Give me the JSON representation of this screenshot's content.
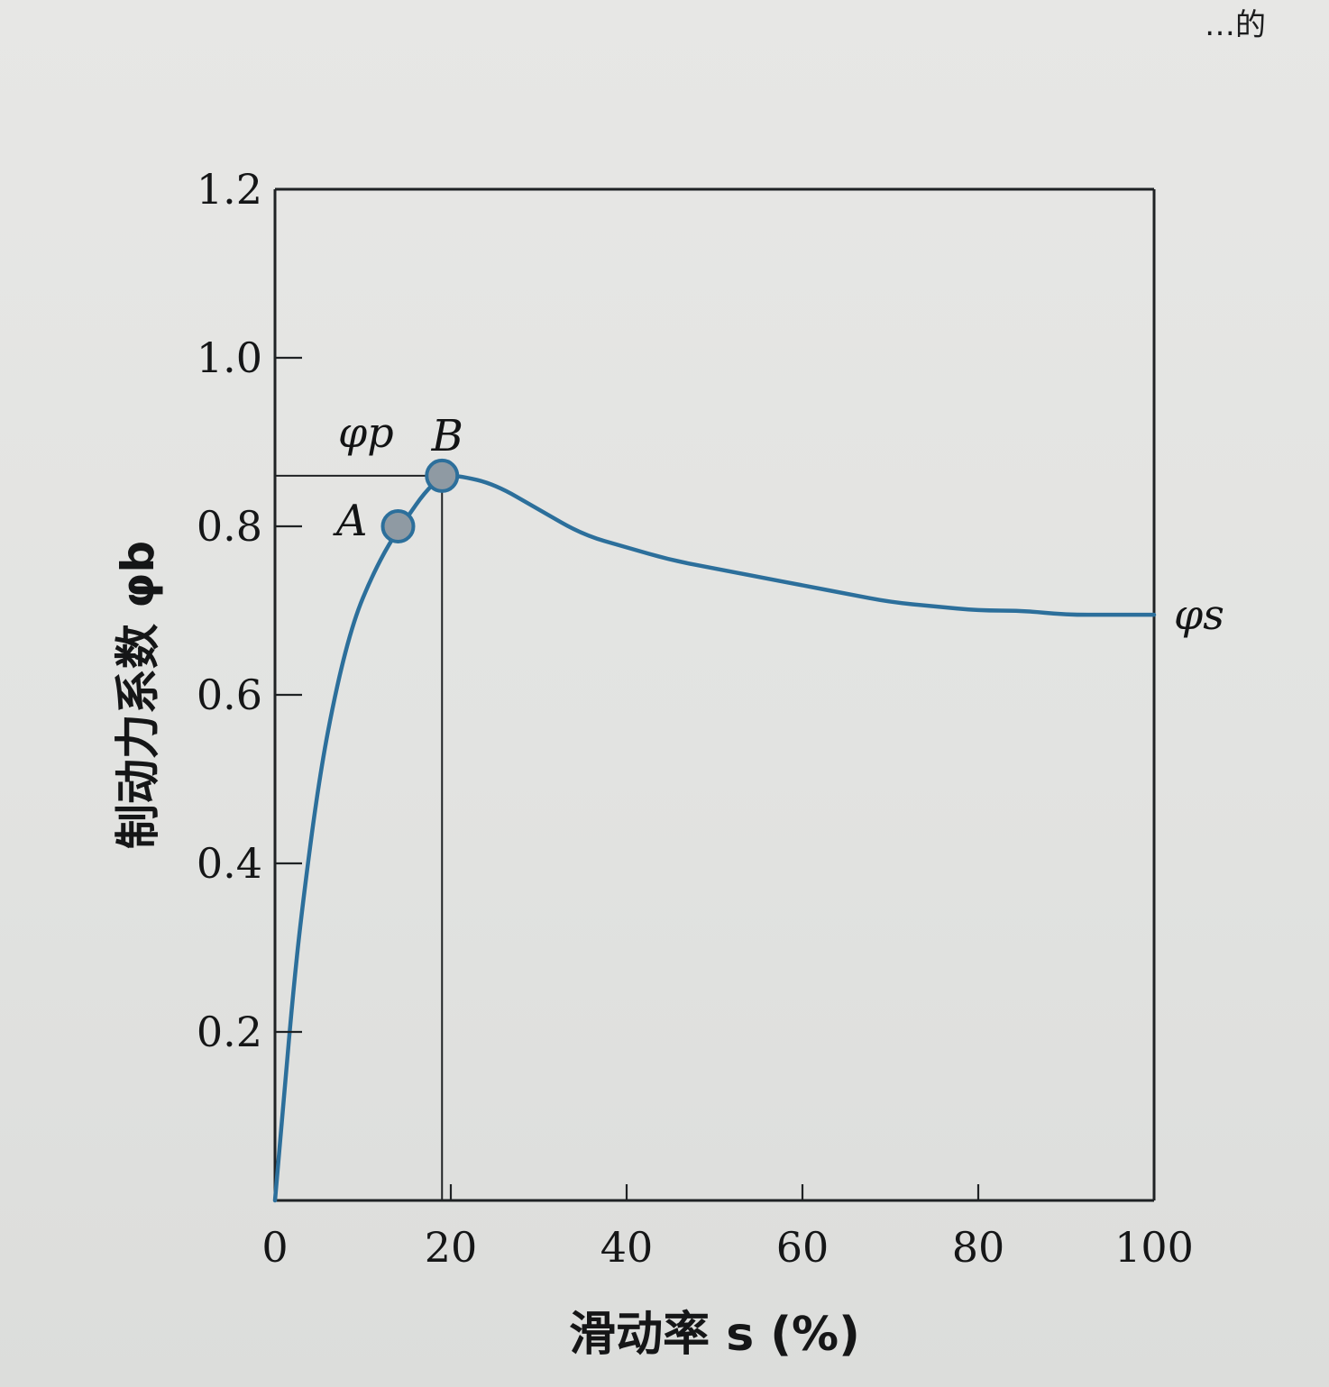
{
  "page": {
    "top_text_fragment": "…的"
  },
  "chart_data": {
    "type": "line",
    "title": "",
    "xlabel": "滑动率 s (%)",
    "ylabel": "制动力系数 φb",
    "xlim": [
      0,
      100
    ],
    "ylim": [
      0,
      1.2
    ],
    "x_ticks": [
      0,
      20,
      40,
      60,
      80,
      100
    ],
    "x_tick_labels": [
      "0",
      "20",
      "40",
      "60",
      "80",
      "100"
    ],
    "y_ticks": [
      0.2,
      0.4,
      0.6,
      0.8,
      1.0,
      1.2
    ],
    "y_tick_labels": [
      "0.2",
      "0.4",
      "0.6",
      "0.8",
      "1.0",
      "1.2"
    ],
    "grid": false,
    "series": [
      {
        "color": "#2c6f9b",
        "x": [
          0,
          1,
          2,
          3,
          5,
          7,
          9,
          11,
          13,
          15,
          17,
          19,
          21,
          25,
          30,
          35,
          40,
          45,
          50,
          55,
          60,
          65,
          70,
          75,
          80,
          85,
          90,
          95,
          100
        ],
        "y": [
          0,
          0.12,
          0.24,
          0.34,
          0.5,
          0.61,
          0.69,
          0.74,
          0.78,
          0.81,
          0.84,
          0.86,
          0.86,
          0.85,
          0.82,
          0.79,
          0.775,
          0.76,
          0.75,
          0.74,
          0.73,
          0.72,
          0.71,
          0.705,
          0.7,
          0.7,
          0.695,
          0.695,
          0.695
        ]
      }
    ],
    "points": [
      {
        "label": "A",
        "x": 14,
        "y": 0.8
      },
      {
        "label": "B",
        "x": 19,
        "y": 0.86
      }
    ],
    "annotations": {
      "peak_label": "φp",
      "peak_value": 0.86,
      "peak_s": 19,
      "end_label": "φs"
    },
    "colors": {
      "curve": "#2c6f9b",
      "axes": "#1f2224",
      "marker_fill": "#8f9aa3"
    }
  }
}
